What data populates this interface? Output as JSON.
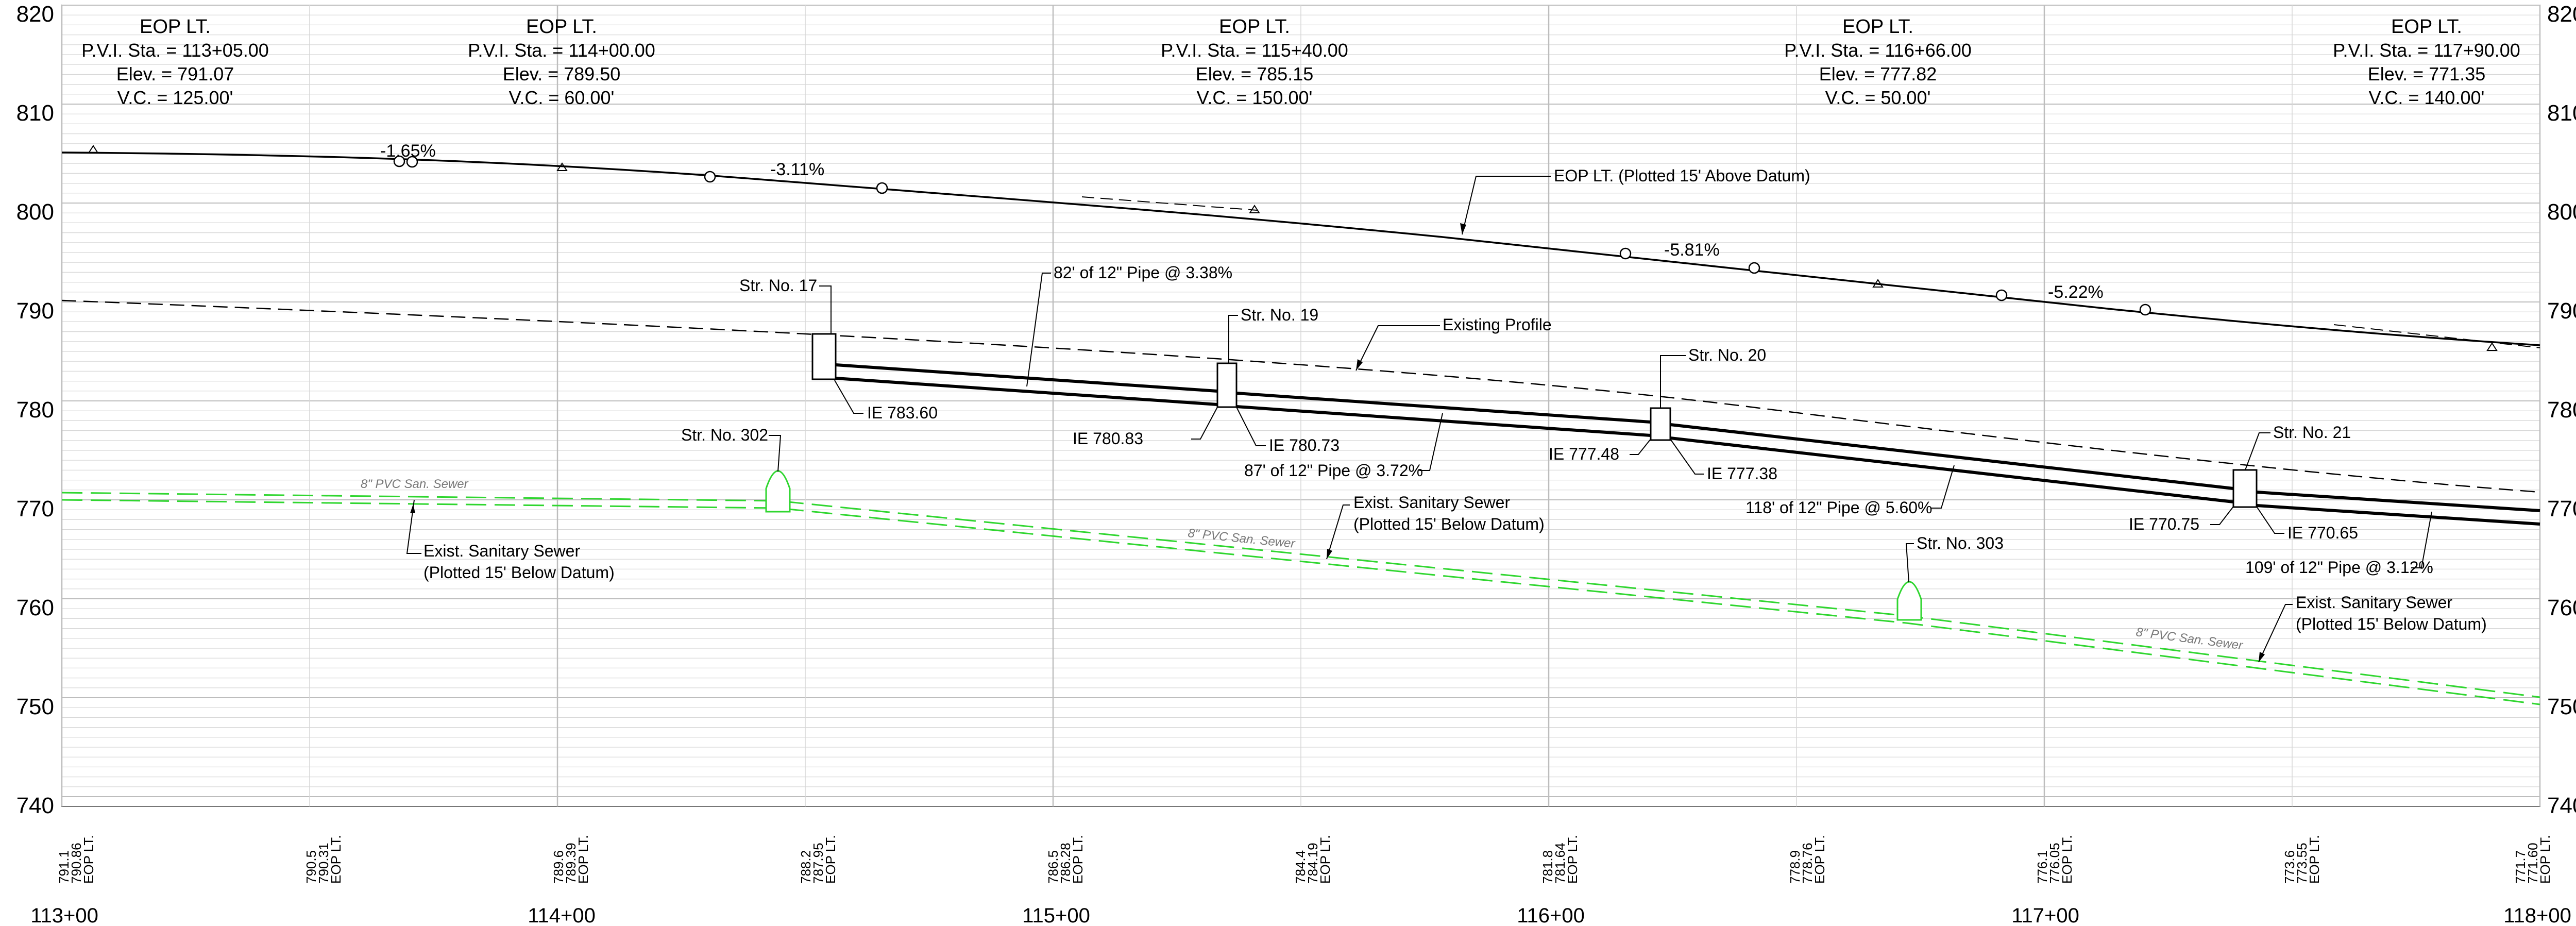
{
  "pvi_labels": [
    {
      "title": "EOP LT.",
      "sta": "P.V.I. Sta. = 113+05.00",
      "elev": "Elev. = 791.07",
      "vc": "V.C. = 125.00'"
    },
    {
      "title": "EOP LT.",
      "sta": "P.V.I. Sta. = 114+00.00",
      "elev": "Elev. = 789.50",
      "vc": "V.C. = 60.00'"
    },
    {
      "title": "EOP LT.",
      "sta": "P.V.I. Sta. = 115+40.00",
      "elev": "Elev. = 785.15",
      "vc": "V.C. = 150.00'"
    },
    {
      "title": "EOP LT.",
      "sta": "P.V.I. Sta. = 116+66.00",
      "elev": "Elev. = 777.82",
      "vc": "V.C. = 50.00'"
    },
    {
      "title": "EOP LT.",
      "sta": "P.V.I. Sta. = 117+90.00",
      "elev": "Elev. = 771.35",
      "vc": "V.C. = 140.00'"
    }
  ],
  "elevation_ticks": [
    "820",
    "810",
    "800",
    "790",
    "780",
    "770",
    "760",
    "750",
    "740"
  ],
  "station_ticks": [
    "113+00",
    "114+00",
    "115+00",
    "116+00",
    "117+00",
    "118+00"
  ],
  "bottom_elevations": [
    {
      "existing": "791.1",
      "proposed": "790.86",
      "label": "EOP LT."
    },
    {
      "existing": "790.5",
      "proposed": "790.31",
      "label": "EOP LT."
    },
    {
      "existing": "789.6",
      "proposed": "789.39",
      "label": "EOP LT."
    },
    {
      "existing": "788.2",
      "proposed": "787.95",
      "label": "EOP LT."
    },
    {
      "existing": "786.5",
      "proposed": "786.28",
      "label": "EOP LT."
    },
    {
      "existing": "784.4",
      "proposed": "784.19",
      "label": "EOP LT."
    },
    {
      "existing": "781.8",
      "proposed": "781.64",
      "label": "EOP LT."
    },
    {
      "existing": "778.9",
      "proposed": "778.76",
      "label": "EOP LT."
    },
    {
      "existing": "776.1",
      "proposed": "776.05",
      "label": "EOP LT."
    },
    {
      "existing": "773.6",
      "proposed": "773.55",
      "label": "EOP LT."
    },
    {
      "existing": "771.7",
      "proposed": "771.60",
      "label": "EOP LT."
    }
  ],
  "grades": [
    "-1.65%",
    "-3.11%",
    "-5.81%",
    "-5.22%"
  ],
  "callouts": {
    "eop": "EOP LT. (Plotted 15' Above Datum)",
    "existing_profile": "Existing Profile",
    "san_sewer_line1": "Exist. Sanitary Sewer",
    "san_sewer_line2": "(Plotted 15' Below Datum)",
    "pvc_tag": "8\" PVC San. Sewer"
  },
  "structures": [
    "Str. No. 17",
    "Str. No. 19",
    "Str. No. 20",
    "Str. No. 21",
    "Str. No. 302",
    "Str. No. 303"
  ],
  "pipes": [
    "82' of 12\" Pipe @ 3.38%",
    "87' of 12\" Pipe @ 3.72%",
    "118' of 12\" Pipe @ 5.60%",
    "109' of 12\" Pipe @ 3.12%"
  ],
  "inverts": [
    "IE 783.60",
    "IE 780.83",
    "IE 780.73",
    "IE 777.48",
    "IE 777.38",
    "IE 770.75",
    "IE 770.65"
  ],
  "colors": {
    "grid": "#d6d6d6",
    "major_grid": "#bdbdbd",
    "sewer": "#2fd62f",
    "line": "#000000"
  }
}
